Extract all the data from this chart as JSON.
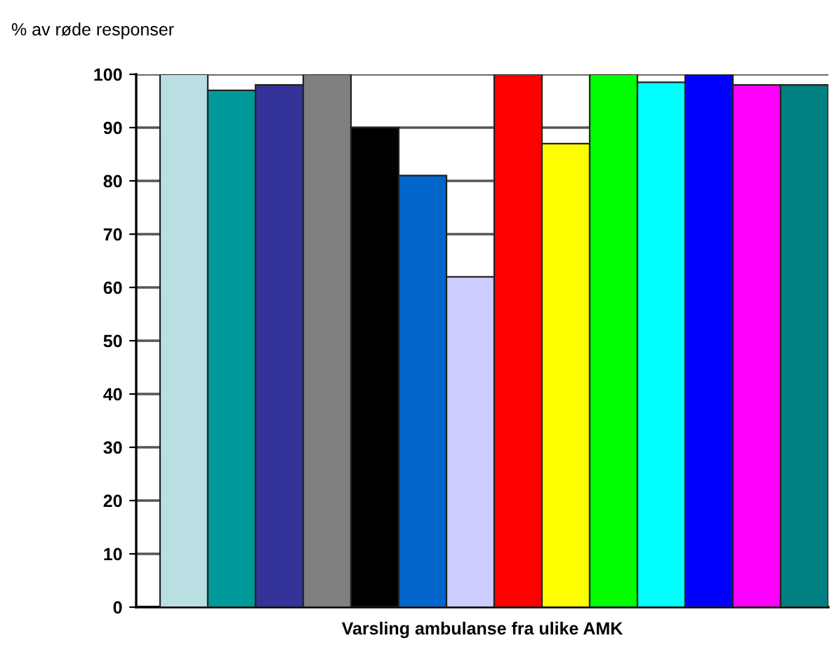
{
  "chart_data": {
    "type": "bar",
    "ylabel": "% av røde responser",
    "xlabel": "Varsling ambulanse fra ulike AMK",
    "categories": [
      null,
      null,
      null,
      null,
      null,
      null,
      null,
      null,
      null,
      null,
      null,
      null,
      null,
      null
    ],
    "values": [
      100,
      97,
      98,
      100,
      90,
      81,
      62,
      100,
      87,
      100,
      98.5,
      100,
      98,
      98
    ],
    "colors": [
      "#b9dfe3",
      "#009999",
      "#333399",
      "#808080",
      "#000000",
      "#0066cc",
      "#ccccff",
      "#ff0000",
      "#ffff00",
      "#00ff00",
      "#00ffff",
      "#0000ff",
      "#ff00ff",
      "#008080"
    ],
    "ylim": [
      0,
      100
    ],
    "yticks": [
      0,
      10,
      20,
      30,
      40,
      50,
      60,
      70,
      80,
      90,
      100
    ],
    "grid": "y"
  }
}
